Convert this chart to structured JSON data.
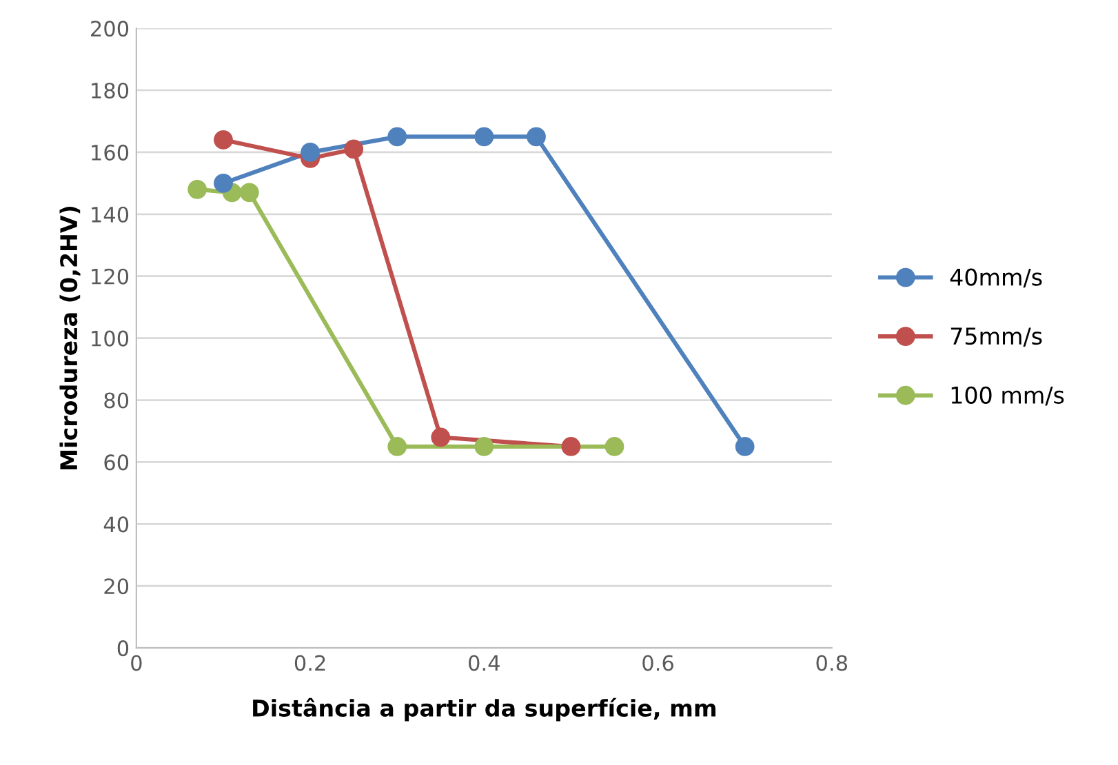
{
  "chart_data": {
    "type": "line",
    "xlabel": "Distância a partir da superfície, mm",
    "ylabel": "Microdureza (0,2HV)",
    "xlim": [
      0,
      0.8
    ],
    "xticks": [
      0,
      0.2,
      0.4,
      0.6,
      0.8
    ],
    "ylim": [
      0,
      200
    ],
    "yticks": [
      0,
      20,
      40,
      60,
      80,
      100,
      120,
      140,
      160,
      180,
      200
    ],
    "grid": "y",
    "legend": "right",
    "marker": "circle",
    "line_style": "solid",
    "series": [
      {
        "name": "40mm/s",
        "color": "#4f81bd",
        "x": [
          0.1,
          0.2,
          0.3,
          0.4,
          0.46,
          0.7
        ],
        "values": [
          150,
          160,
          165,
          165,
          165,
          65
        ]
      },
      {
        "name": "75mm/s",
        "color": "#c0504d",
        "x": [
          0.1,
          0.2,
          0.25,
          0.35,
          0.5
        ],
        "values": [
          164,
          158,
          161,
          68,
          65
        ]
      },
      {
        "name": "100 mm/s",
        "color": "#9bbb59",
        "x": [
          0.07,
          0.11,
          0.13,
          0.3,
          0.4,
          0.55
        ],
        "values": [
          148,
          147,
          147,
          65,
          65,
          65
        ]
      }
    ]
  }
}
